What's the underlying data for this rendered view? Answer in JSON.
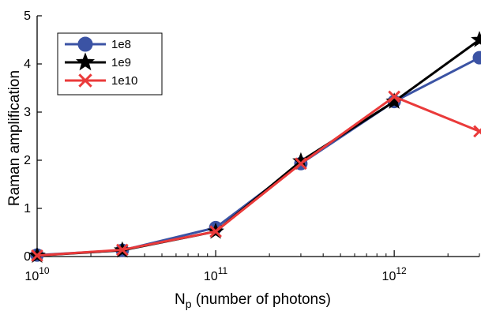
{
  "chart_data": {
    "type": "line",
    "xscale": "log",
    "xlim": [
      10000000000.0,
      3000000000000.0
    ],
    "ylim": [
      0,
      5
    ],
    "xlabel": {
      "main": "N",
      "sub": "p",
      "rest": " (number of photons)"
    },
    "ylabel": "Raman amplification",
    "x_ticks": [
      {
        "value": 10000000000.0,
        "base": "10",
        "exp": "10"
      },
      {
        "value": 100000000000.0,
        "base": "10",
        "exp": "11"
      },
      {
        "value": 1000000000000.0,
        "base": "10",
        "exp": "12"
      }
    ],
    "y_ticks": [
      "0",
      "1",
      "2",
      "3",
      "4",
      "5"
    ],
    "x": [
      10000000000.0,
      30000000000.0,
      100000000000.0,
      300000000000.0,
      1000000000000.0,
      3000000000000.0
    ],
    "legend_position": "top-left",
    "grid": false,
    "series": [
      {
        "name": "1e8",
        "marker": "circle",
        "color": "#3b53a4",
        "values": [
          0.03,
          0.13,
          0.6,
          1.93,
          3.22,
          4.13
        ]
      },
      {
        "name": "1e9",
        "marker": "star",
        "color": "#000000",
        "values": [
          0.02,
          0.13,
          0.52,
          1.98,
          3.22,
          4.5
        ]
      },
      {
        "name": "1e10",
        "marker": "x",
        "color": "#ea3a3a",
        "values": [
          0.02,
          0.14,
          0.52,
          1.93,
          3.32,
          2.6
        ]
      }
    ]
  }
}
